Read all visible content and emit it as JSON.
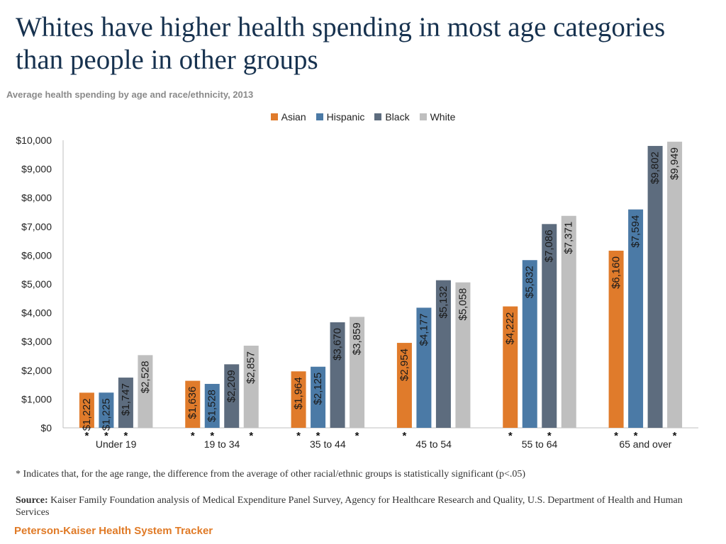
{
  "header": {
    "title": "Whites have higher health spending in most age categories than people in other groups",
    "subtitle": "Average health spending by age and race/ethnicity, 2013"
  },
  "colors": {
    "Asian": "#e07b2b",
    "Hispanic": "#4b7aa6",
    "Black": "#5d6c7e",
    "White": "#bfbfbf",
    "title": "#17324f",
    "brand": "#e07a26"
  },
  "chart_data": {
    "type": "bar",
    "title": "Average health spending by age and race/ethnicity, 2013",
    "xlabel": "",
    "ylabel": "",
    "ylim": [
      0,
      10000
    ],
    "yticks": [
      0,
      1000,
      2000,
      3000,
      4000,
      5000,
      6000,
      7000,
      8000,
      9000,
      10000
    ],
    "ytick_labels": [
      "$0",
      "$1,000",
      "$2,000",
      "$3,000",
      "$4,000",
      "$5,000",
      "$6,000",
      "$7,000",
      "$8,000",
      "$9,000",
      "$10,000"
    ],
    "legend_position": "top-center",
    "grid": false,
    "categories": [
      "Under 19",
      "19 to 34",
      "35 to 44",
      "45 to 54",
      "55 to 64",
      "65 and over"
    ],
    "series": [
      {
        "name": "Asian",
        "values": [
          1222,
          1636,
          1964,
          2954,
          4222,
          6160
        ],
        "labels": [
          "$1,222",
          "$1,636",
          "$1,964",
          "$2,954",
          "$4,222",
          "$6,160"
        ],
        "significant": [
          true,
          true,
          true,
          true,
          true,
          true
        ]
      },
      {
        "name": "Hispanic",
        "values": [
          1225,
          1528,
          2125,
          4177,
          5832,
          7594
        ],
        "labels": [
          "$1,225",
          "$1,528",
          "$2,125",
          "$4,177",
          "$5,832",
          "$7,594"
        ],
        "significant": [
          true,
          true,
          true,
          false,
          false,
          true
        ]
      },
      {
        "name": "Black",
        "values": [
          1747,
          2209,
          3670,
          5132,
          7086,
          9802
        ],
        "labels": [
          "$1,747",
          "$2,209",
          "$3,670",
          "$5,132",
          "$7,086",
          "$9,802"
        ],
        "significant": [
          true,
          false,
          false,
          false,
          true,
          false
        ]
      },
      {
        "name": "White",
        "values": [
          2528,
          2857,
          3859,
          5058,
          7371,
          9949
        ],
        "labels": [
          "$2,528",
          "$2,857",
          "$3,859",
          "$5,058",
          "$7,371",
          "$9,949"
        ],
        "significant": [
          false,
          true,
          true,
          false,
          false,
          true
        ]
      }
    ],
    "significance_marker": "*"
  },
  "footer": {
    "note": "* Indicates that, for the age range, the difference from the average of other racial/ethnic groups is statistically significant (p<.05)",
    "source_label": "Source:",
    "source_text": "Kaiser Family Foundation analysis of Medical Expenditure Panel Survey, Agency for Healthcare Research and Quality, U.S. Department of Health and Human Services",
    "brand": "Peterson-Kaiser Health System Tracker"
  }
}
